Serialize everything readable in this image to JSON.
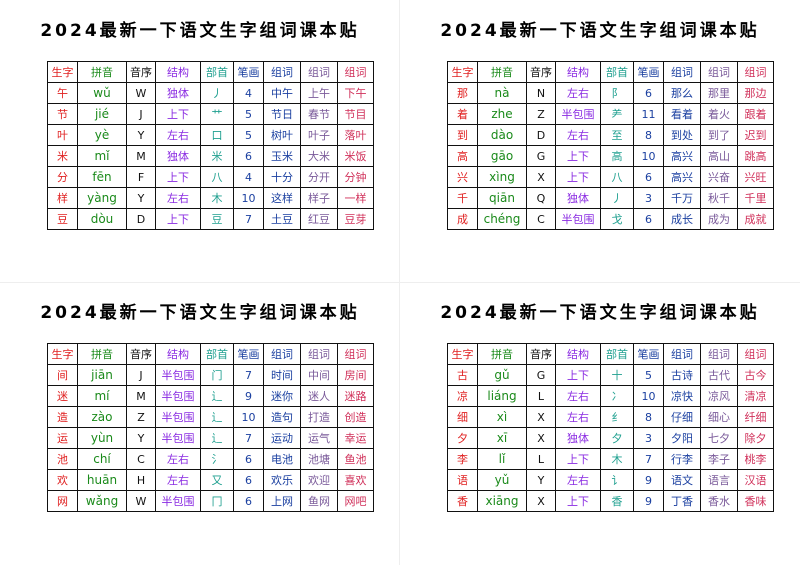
{
  "tables": [
    {
      "title": "2024最新一下语文生字组词课本贴",
      "header": [
        "生字",
        "拼音",
        "音序",
        "结构",
        "部首",
        "笔画",
        "组词",
        "组词",
        "组词"
      ],
      "rows": [
        [
          "午",
          "wǔ",
          "W",
          "独体",
          "丿",
          "4",
          "中午",
          "上午",
          "下午"
        ],
        [
          "节",
          "jié",
          "J",
          "上下",
          "艹",
          "5",
          "节日",
          "春节",
          "节目"
        ],
        [
          "叶",
          "yè",
          "Y",
          "左右",
          "口",
          "5",
          "树叶",
          "叶子",
          "落叶"
        ],
        [
          "米",
          "mǐ",
          "M",
          "独体",
          "米",
          "6",
          "玉米",
          "大米",
          "米饭"
        ],
        [
          "分",
          "fēn",
          "F",
          "上下",
          "八",
          "4",
          "十分",
          "分开",
          "分钟"
        ],
        [
          "样",
          "yàng",
          "Y",
          "左右",
          "木",
          "10",
          "这样",
          "样子",
          "一样"
        ],
        [
          "豆",
          "dòu",
          "D",
          "上下",
          "豆",
          "7",
          "土豆",
          "红豆",
          "豆芽"
        ]
      ]
    },
    {
      "title": "2024最新一下语文生字组词课本贴",
      "header": [
        "生字",
        "拼音",
        "音序",
        "结构",
        "部首",
        "笔画",
        "组词",
        "组词",
        "组词"
      ],
      "rows": [
        [
          "那",
          "nà",
          "N",
          "左右",
          "阝",
          "6",
          "那么",
          "那里",
          "那边"
        ],
        [
          "着",
          "zhe",
          "Z",
          "半包围",
          "⺶",
          "11",
          "看着",
          "着火",
          "跟着"
        ],
        [
          "到",
          "dào",
          "D",
          "左右",
          "至",
          "8",
          "到处",
          "到了",
          "迟到"
        ],
        [
          "高",
          "gāo",
          "G",
          "上下",
          "高",
          "10",
          "高兴",
          "高山",
          "跳高"
        ],
        [
          "兴",
          "xìng",
          "X",
          "上下",
          "八",
          "6",
          "高兴",
          "兴奋",
          "兴旺"
        ],
        [
          "千",
          "qiān",
          "Q",
          "独体",
          "丿",
          "3",
          "千万",
          "秋千",
          "千里"
        ],
        [
          "成",
          "chéng",
          "C",
          "半包围",
          "戈",
          "6",
          "成长",
          "成为",
          "成就"
        ]
      ]
    },
    {
      "title": "2024最新一下语文生字组词课本贴",
      "header": [
        "生字",
        "拼音",
        "音序",
        "结构",
        "部首",
        "笔画",
        "组词",
        "组词",
        "组词"
      ],
      "rows": [
        [
          "间",
          "jiān",
          "J",
          "半包围",
          "门",
          "7",
          "时间",
          "中间",
          "房间"
        ],
        [
          "迷",
          "mí",
          "M",
          "半包围",
          "辶",
          "9",
          "迷你",
          "迷人",
          "迷路"
        ],
        [
          "造",
          "zào",
          "Z",
          "半包围",
          "辶",
          "10",
          "造句",
          "打造",
          "创造"
        ],
        [
          "运",
          "yùn",
          "Y",
          "半包围",
          "辶",
          "7",
          "运动",
          "运气",
          "幸运"
        ],
        [
          "池",
          "chí",
          "C",
          "左右",
          "氵",
          "6",
          "电池",
          "池塘",
          "鱼池"
        ],
        [
          "欢",
          "huān",
          "H",
          "左右",
          "又",
          "6",
          "欢乐",
          "欢迎",
          "喜欢"
        ],
        [
          "网",
          "wǎng",
          "W",
          "半包围",
          "冂",
          "6",
          "上网",
          "鱼网",
          "网吧"
        ]
      ]
    },
    {
      "title": "2024最新一下语文生字组词课本贴",
      "header": [
        "生字",
        "拼音",
        "音序",
        "结构",
        "部首",
        "笔画",
        "组词",
        "组词",
        "组词"
      ],
      "rows": [
        [
          "古",
          "gǔ",
          "G",
          "上下",
          "十",
          "5",
          "古诗",
          "古代",
          "古今"
        ],
        [
          "凉",
          "liáng",
          "L",
          "左右",
          "冫",
          "10",
          "凉快",
          "凉风",
          "清凉"
        ],
        [
          "细",
          "xì",
          "X",
          "左右",
          "纟",
          "8",
          "仔细",
          "细心",
          "纤细"
        ],
        [
          "夕",
          "xī",
          "X",
          "独体",
          "夕",
          "3",
          "夕阳",
          "七夕",
          "除夕"
        ],
        [
          "李",
          "lǐ",
          "L",
          "上下",
          "木",
          "7",
          "行李",
          "李子",
          "桃李"
        ],
        [
          "语",
          "yǔ",
          "Y",
          "左右",
          "讠",
          "9",
          "语文",
          "语言",
          "汉语"
        ],
        [
          "香",
          "xiāng",
          "X",
          "上下",
          "香",
          "9",
          "丁香",
          "香水",
          "香味"
        ]
      ]
    }
  ]
}
